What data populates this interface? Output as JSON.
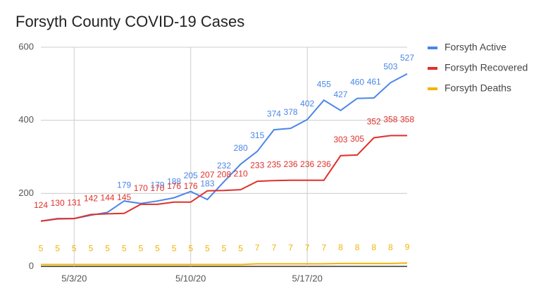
{
  "chart_data": {
    "type": "line",
    "title": "Forsyth County COVID-19 Cases",
    "categories": [
      null,
      null,
      "5/3/20",
      null,
      null,
      null,
      null,
      null,
      null,
      "5/10/20",
      null,
      null,
      null,
      null,
      null,
      null,
      "5/17/20",
      null,
      null,
      null,
      null,
      null,
      null
    ],
    "series": [
      {
        "name": "Forsyth Active",
        "color": "#4a86e8",
        "values": [
          124,
          131,
          131,
          140,
          148,
          179,
          172,
          179,
          188,
          205,
          183,
          232,
          280,
          315,
          374,
          378,
          402,
          455,
          427,
          460,
          461,
          503,
          527
        ],
        "value_labels": [
          null,
          null,
          null,
          null,
          null,
          "179",
          null,
          "179",
          "188",
          "205",
          "183",
          "232",
          "280",
          "315",
          "374",
          "378",
          "402",
          "455",
          "427",
          "460",
          "461",
          "503",
          "527"
        ]
      },
      {
        "name": "Forsyth Recovered",
        "color": "#e0302b",
        "values": [
          124,
          130,
          131,
          142,
          144,
          145,
          170,
          170,
          176,
          176,
          207,
          208,
          210,
          233,
          235,
          236,
          236,
          236,
          303,
          305,
          352,
          358,
          358
        ]
      },
      {
        "name": "Forsyth Deaths",
        "color": "#f4b400",
        "values": [
          5,
          5,
          5,
          5,
          5,
          5,
          5,
          5,
          5,
          5,
          5,
          5,
          5,
          7,
          7,
          7,
          7,
          7,
          8,
          8,
          8,
          8,
          9
        ]
      }
    ],
    "ylim": [
      0,
      600
    ],
    "yticks": [
      0,
      200,
      400,
      600
    ],
    "grid": true
  }
}
